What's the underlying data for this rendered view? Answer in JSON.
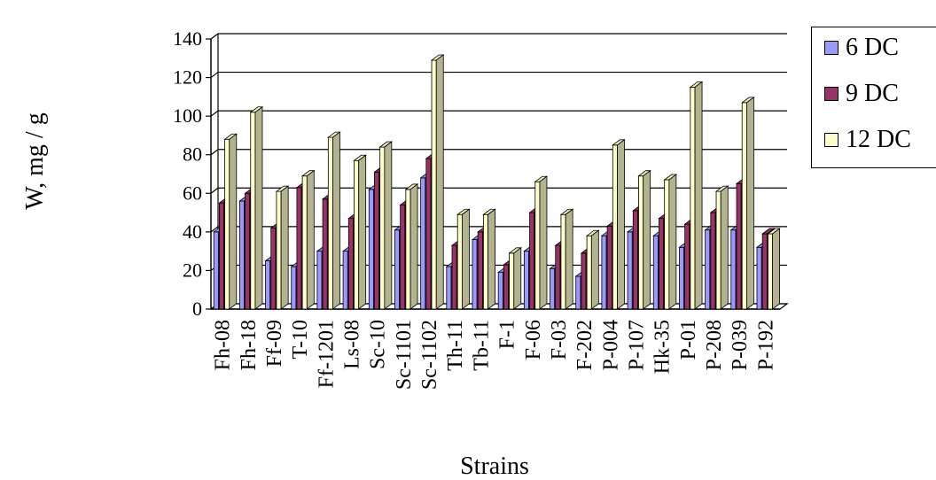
{
  "chart_data": {
    "type": "bar",
    "xlabel": "Strains",
    "ylabel": "W, mg / g",
    "ylim": [
      0,
      140
    ],
    "yticks": [
      0,
      20,
      40,
      60,
      80,
      100,
      120,
      140
    ],
    "grid": true,
    "legend_position": "right",
    "categories": [
      "Fh-08",
      "Fh-18",
      "Ff-09",
      "T-10",
      "Ff-1201",
      "Ls-08",
      "Sc-10",
      "Sc-1101",
      "Sc-1102",
      "Th-11",
      "Tb-11",
      "F-1",
      "F-06",
      "F-03",
      "F-202",
      "P-004",
      "P-107",
      "Hk-35",
      "P-01",
      "P-208",
      "P-039",
      "P-192"
    ],
    "series": [
      {
        "name": "6 DC",
        "color": "#9999ff",
        "values": [
          40,
          56,
          25,
          22,
          30,
          30,
          62,
          41,
          68,
          22,
          36,
          19,
          30,
          21,
          17,
          38,
          40,
          38,
          32,
          41,
          41,
          32
        ]
      },
      {
        "name": "9 DC",
        "color": "#993366",
        "values": [
          55,
          60,
          42,
          63,
          57,
          47,
          71,
          54,
          78,
          33,
          40,
          23,
          50,
          33,
          29,
          43,
          51,
          47,
          44,
          50,
          65,
          39
        ]
      },
      {
        "name": "12 DC",
        "color": "#ffffcc",
        "values": [
          88,
          102,
          61,
          69,
          89,
          77,
          84,
          62,
          129,
          49,
          49,
          29,
          66,
          49,
          38,
          85,
          69,
          67,
          115,
          61,
          107,
          39
        ]
      }
    ]
  }
}
